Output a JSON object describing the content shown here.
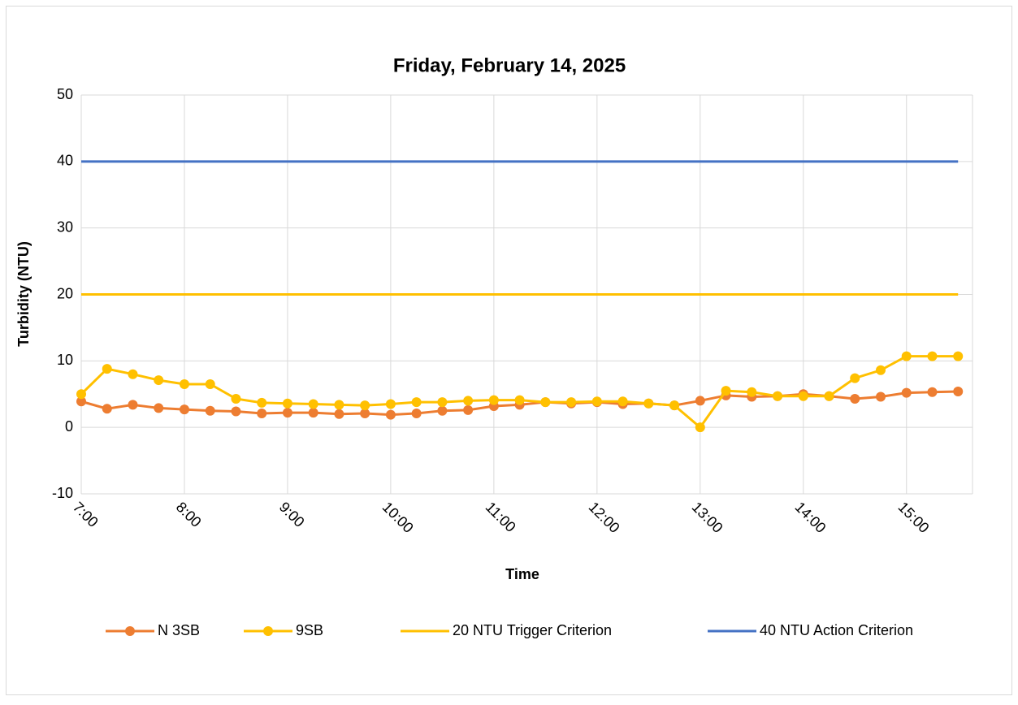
{
  "chart_data": {
    "type": "line",
    "title": "Friday, February 14, 2025",
    "x_label": "Time",
    "y_label": "Turbidity (NTU)",
    "x": [
      7,
      7.25,
      7.5,
      7.75,
      8,
      8.25,
      8.5,
      8.75,
      9,
      9.25,
      9.5,
      9.75,
      10,
      10.25,
      10.5,
      10.75,
      11,
      11.25,
      11.5,
      11.75,
      12,
      12.25,
      12.5,
      12.75,
      13,
      13.25,
      13.5,
      13.75,
      14,
      14.25,
      14.5,
      14.75,
      15,
      15.25,
      15.5
    ],
    "series": [
      {
        "name": "N 3SB",
        "color": "#ED7D31",
        "markers": true,
        "values": [
          3.9,
          2.8,
          3.4,
          2.9,
          2.7,
          2.5,
          2.4,
          2.1,
          2.2,
          2.2,
          2.0,
          2.1,
          1.9,
          2.1,
          2.5,
          2.6,
          3.2,
          3.4,
          3.8,
          3.6,
          3.8,
          3.5,
          3.6,
          3.3,
          4.0,
          4.8,
          4.6,
          4.7,
          5.0,
          4.7,
          4.3,
          4.6,
          5.2,
          5.3,
          5.4
        ]
      },
      {
        "name": "9SB",
        "color": "#FFC000",
        "markers": true,
        "values": [
          5.0,
          8.8,
          8.0,
          7.1,
          6.5,
          6.5,
          4.3,
          3.7,
          3.6,
          3.5,
          3.4,
          3.3,
          3.5,
          3.8,
          3.8,
          4.0,
          4.1,
          4.1,
          3.8,
          3.8,
          3.9,
          3.9,
          3.6,
          3.3,
          0.0,
          5.5,
          5.3,
          4.7,
          4.7,
          4.7,
          7.4,
          8.6,
          10.7,
          10.7,
          10.7
        ]
      },
      {
        "name": "20 NTU Trigger Criterion",
        "color": "#FFC000",
        "markers": false,
        "values": [
          20,
          20,
          20,
          20,
          20,
          20,
          20,
          20,
          20,
          20,
          20,
          20,
          20,
          20,
          20,
          20,
          20,
          20,
          20,
          20,
          20,
          20,
          20,
          20,
          20,
          20,
          20,
          20,
          20,
          20,
          20,
          20,
          20,
          20,
          20
        ]
      },
      {
        "name": "40 NTU Action Criterion",
        "color": "#4472C4",
        "markers": false,
        "values": [
          40,
          40,
          40,
          40,
          40,
          40,
          40,
          40,
          40,
          40,
          40,
          40,
          40,
          40,
          40,
          40,
          40,
          40,
          40,
          40,
          40,
          40,
          40,
          40,
          40,
          40,
          40,
          40,
          40,
          40,
          40,
          40,
          40,
          40,
          40
        ]
      }
    ],
    "xlim": [
      7,
      15.64
    ],
    "xticks": [
      {
        "value": 7,
        "label": "7:00"
      },
      {
        "value": 8,
        "label": "8:00"
      },
      {
        "value": 9,
        "label": "9:00"
      },
      {
        "value": 10,
        "label": "10:00"
      },
      {
        "value": 11,
        "label": "11:00"
      },
      {
        "value": 12,
        "label": "12:00"
      },
      {
        "value": 13,
        "label": "13:00"
      },
      {
        "value": 14,
        "label": "14:00"
      },
      {
        "value": 15,
        "label": "15:00"
      }
    ],
    "ylim": [
      -10,
      50
    ],
    "yticks": [
      -10,
      0,
      10,
      20,
      30,
      40,
      50
    ],
    "grid": true,
    "legend": "bottom"
  }
}
